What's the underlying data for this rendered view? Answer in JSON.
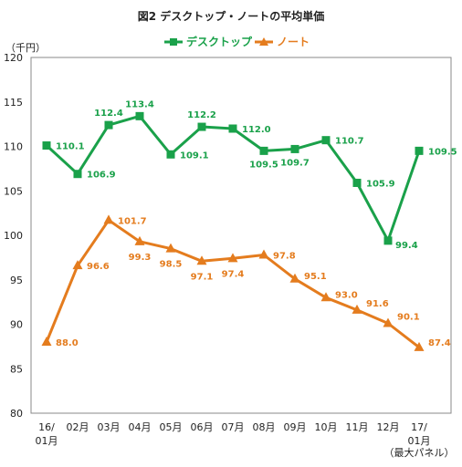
{
  "chart_data": {
    "type": "line",
    "title": "図2 デスクトップ・ノートの平均単価",
    "ylabel": "（千円）",
    "ylim": [
      80,
      120
    ],
    "yticks": [
      80,
      85,
      90,
      95,
      100,
      105,
      110,
      115,
      120
    ],
    "categories": [
      [
        "16/",
        "01月"
      ],
      [
        "02月"
      ],
      [
        "03月"
      ],
      [
        "04月"
      ],
      [
        "05月"
      ],
      [
        "06月"
      ],
      [
        "07月"
      ],
      [
        "08月"
      ],
      [
        "09月"
      ],
      [
        "10月"
      ],
      [
        "11月"
      ],
      [
        "12月"
      ],
      [
        "17/",
        "01月"
      ]
    ],
    "footnote": "（最大パネル）",
    "grid": false,
    "legend_position": "top",
    "series": [
      {
        "name": "デスクトップ",
        "color": "#1aa14a",
        "marker": "square",
        "values": [
          110.1,
          106.9,
          112.4,
          113.4,
          109.1,
          112.2,
          112.0,
          109.5,
          109.7,
          110.7,
          105.9,
          99.4,
          109.5
        ],
        "labels": [
          "110.1",
          "106.9",
          "112.4",
          "113.4",
          "109.1",
          "112.2",
          "112.0",
          "109.5",
          "109.7",
          "110.7",
          "105.9",
          "99.4",
          "109.5"
        ]
      },
      {
        "name": "ノート",
        "color": "#e47c1e",
        "marker": "triangle",
        "values": [
          88.0,
          96.6,
          101.7,
          99.3,
          98.5,
          97.1,
          97.4,
          97.8,
          95.1,
          93.0,
          91.6,
          90.1,
          87.4
        ],
        "labels": [
          "88.0",
          "96.6",
          "101.7",
          "99.3",
          "98.5",
          "97.1",
          "97.4",
          "97.8",
          "95.1",
          "93.0",
          "91.6",
          "90.1",
          "87.4"
        ]
      }
    ]
  }
}
